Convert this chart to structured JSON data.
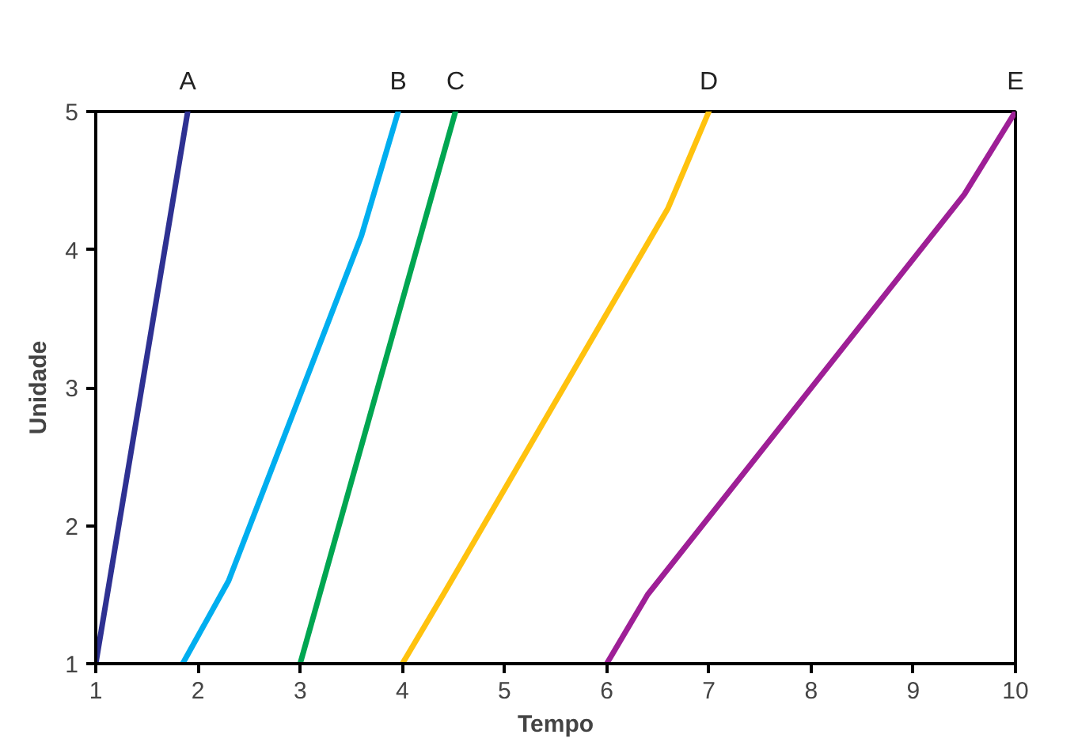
{
  "chart_data": {
    "type": "line",
    "xlabel": "Tempo",
    "ylabel": "Unidade",
    "xlim": [
      1,
      10
    ],
    "ylim": [
      1,
      5
    ],
    "xticks": [
      1,
      2,
      3,
      4,
      5,
      6,
      7,
      8,
      9,
      10
    ],
    "yticks": [
      1,
      2,
      3,
      4,
      5
    ],
    "grid": false,
    "series": [
      {
        "name": "A",
        "color": "#2e3192",
        "x": [
          1.0,
          1.9
        ],
        "values": [
          1,
          5
        ]
      },
      {
        "name": "B",
        "color": "#00aeef",
        "x": [
          1.85,
          2.3,
          3.6,
          3.96
        ],
        "values": [
          1,
          1.6,
          4.1,
          5
        ]
      },
      {
        "name": "C",
        "color": "#00a651",
        "x": [
          3.0,
          4.52
        ],
        "values": [
          1,
          5
        ]
      },
      {
        "name": "D",
        "color": "#ffc20e",
        "x": [
          4.0,
          4.4,
          6.6,
          7.0
        ],
        "values": [
          1,
          1.5,
          4.3,
          5
        ]
      },
      {
        "name": "E",
        "color": "#9e1f96",
        "x": [
          6.0,
          6.4,
          9.5,
          10.0
        ],
        "values": [
          1,
          1.5,
          4.4,
          5
        ]
      }
    ]
  }
}
